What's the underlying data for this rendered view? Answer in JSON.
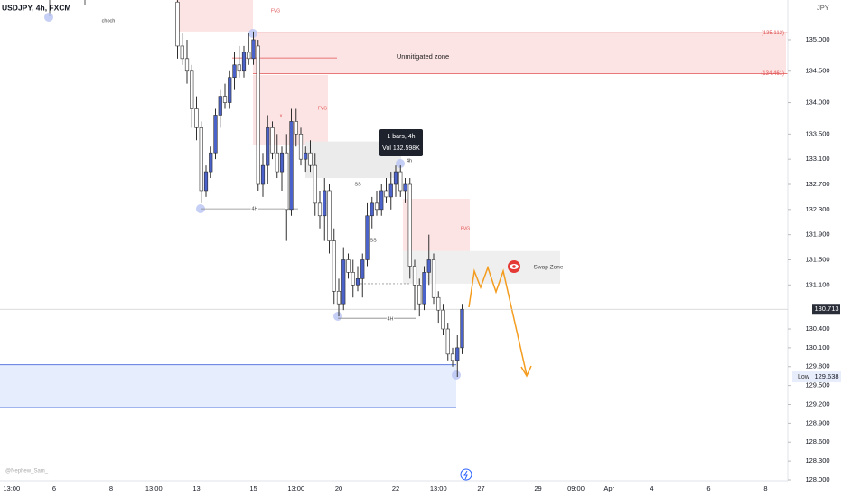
{
  "header": {
    "symbol": "USDJPY, 4h, FXCM",
    "currency": "JPY",
    "watermark": "@Nephew_Sam_"
  },
  "chart_data": {
    "type": "candlestick",
    "categories": [
      "13:00",
      null,
      null,
      null,
      null,
      null,
      null,
      null,
      null,
      "6",
      null,
      null,
      null,
      null,
      null,
      null,
      null,
      null,
      null,
      null,
      null,
      "8",
      null,
      null,
      null,
      null,
      null,
      null,
      null,
      null,
      "13:00",
      null,
      null,
      null,
      null,
      null,
      null,
      null,
      null,
      "13",
      null,
      null,
      null,
      null,
      null,
      null,
      null,
      null,
      null,
      null,
      null,
      "15",
      null,
      null,
      null,
      null,
      null,
      null,
      null,
      null,
      "13:00",
      null,
      null,
      null,
      null,
      null,
      null,
      null,
      null,
      "20",
      null,
      null,
      null,
      null,
      null,
      null,
      null,
      null,
      null,
      null,
      null,
      "22",
      null,
      null,
      null,
      null,
      null,
      null,
      null,
      null,
      "13:00",
      null,
      null,
      null,
      null,
      null,
      null,
      null,
      null,
      "27",
      null,
      null,
      null,
      null,
      null,
      null,
      null,
      null,
      null,
      null,
      null,
      "29",
      null,
      null,
      null,
      null,
      null,
      null,
      null,
      "09:00",
      null,
      null,
      null,
      null,
      null,
      null,
      "Apr",
      null,
      null,
      null,
      null,
      null,
      null,
      null,
      null,
      "4",
      null,
      null,
      null,
      null,
      null,
      null,
      null,
      null,
      null,
      null,
      null,
      "6",
      null,
      null,
      null,
      null,
      null,
      null,
      null,
      null,
      null,
      null,
      null,
      "8"
    ],
    "open": [
      null,
      null,
      null,
      null,
      null,
      null,
      null,
      null,
      null,
      null,
      null,
      null,
      null,
      null,
      null,
      null,
      null,
      null,
      null,
      null,
      null,
      null,
      null,
      null,
      null,
      null,
      null,
      null,
      null,
      null,
      null,
      null,
      null,
      null,
      null,
      135.6,
      134.9,
      134.7,
      134.5,
      133.9,
      133.6,
      132.6,
      132.9,
      133.2,
      133.8,
      134.1,
      134.0,
      134.4,
      134.6,
      134.5,
      134.8,
      134.7,
      134.9,
      132.7,
      133.0,
      133.6,
      133.2,
      132.9,
      133.2,
      132.3,
      133.7,
      133.5,
      133.1,
      133.2,
      133.0,
      132.4,
      132.2,
      132.6,
      131.8,
      131.0,
      130.8,
      131.5,
      131.3,
      131.1,
      131.2,
      131.5,
      132.2,
      132.4,
      132.3,
      132.6,
      132.5,
      132.7,
      132.9,
      132.6,
      132.7,
      131.4,
      131.1,
      130.8,
      131.3,
      131.5,
      130.9,
      130.7,
      130.4,
      130.0,
      129.9,
      130.1,
      null,
      null,
      null,
      null,
      null,
      null,
      null,
      null,
      null,
      null,
      null,
      null,
      null,
      null,
      null,
      null,
      null,
      null,
      null,
      null,
      null,
      null,
      null,
      null,
      null,
      null,
      null,
      null,
      null,
      null,
      null,
      null,
      null,
      null,
      null,
      null,
      null,
      null,
      null,
      null,
      null,
      null,
      null,
      null,
      null,
      null,
      null,
      null,
      null,
      null,
      null,
      null,
      null,
      null,
      null,
      null,
      null,
      null,
      null,
      null,
      null,
      null,
      null,
      null
    ],
    "high": [
      null,
      null,
      null,
      null,
      null,
      null,
      null,
      null,
      null,
      null,
      null,
      null,
      null,
      null,
      null,
      null,
      null,
      null,
      null,
      null,
      null,
      null,
      null,
      null,
      null,
      null,
      null,
      null,
      null,
      null,
      null,
      null,
      null,
      null,
      null,
      135.63,
      135.1,
      135.0,
      134.6,
      134.1,
      133.7,
      133.0,
      133.3,
      133.9,
      134.2,
      134.3,
      134.5,
      134.8,
      134.9,
      134.9,
      135.1,
      135.13,
      135.0,
      133.2,
      133.8,
      133.7,
      133.5,
      133.3,
      133.5,
      133.9,
      133.9,
      133.6,
      133.3,
      133.4,
      133.2,
      132.6,
      132.8,
      132.7,
      132.0,
      131.2,
      131.7,
      131.6,
      131.5,
      131.4,
      131.6,
      132.4,
      132.5,
      132.6,
      132.7,
      132.8,
      132.9,
      133.0,
      133.0,
      132.8,
      132.8,
      131.5,
      131.2,
      131.4,
      131.9,
      131.6,
      131.0,
      130.8,
      130.5,
      130.1,
      130.3,
      130.8,
      null,
      null,
      null,
      null,
      null,
      null,
      null,
      null,
      null,
      null,
      null,
      null,
      null,
      null,
      null,
      null,
      null,
      null,
      null,
      null,
      null,
      null,
      null,
      null,
      null,
      null,
      null,
      null,
      null,
      null,
      null,
      null,
      null,
      null,
      null,
      null,
      null,
      null,
      null,
      null,
      null,
      null,
      null,
      null,
      null,
      null,
      null,
      null,
      null,
      null,
      null,
      null,
      null,
      null,
      null,
      null,
      null,
      null,
      null,
      null,
      null,
      null,
      null,
      null
    ],
    "low": [
      null,
      null,
      null,
      null,
      null,
      null,
      null,
      null,
      null,
      null,
      null,
      null,
      null,
      null,
      null,
      null,
      null,
      null,
      null,
      null,
      null,
      null,
      null,
      null,
      null,
      null,
      null,
      null,
      null,
      null,
      null,
      null,
      null,
      null,
      null,
      134.7,
      134.6,
      134.3,
      133.6,
      133.4,
      132.4,
      132.5,
      132.8,
      133.1,
      133.6,
      133.9,
      133.9,
      134.2,
      134.4,
      134.4,
      134.6,
      134.6,
      132.6,
      132.5,
      132.7,
      133.1,
      132.8,
      132.6,
      131.8,
      132.2,
      133.3,
      133.0,
      132.9,
      132.9,
      132.2,
      132.0,
      131.8,
      131.6,
      130.8,
      130.6,
      130.7,
      131.2,
      130.9,
      131.0,
      130.9,
      131.4,
      132.0,
      132.2,
      132.2,
      132.4,
      132.3,
      132.5,
      132.5,
      132.4,
      131.2,
      130.7,
      130.6,
      130.7,
      131.1,
      130.8,
      130.5,
      130.3,
      129.9,
      129.8,
      129.638,
      130.0,
      null,
      null,
      null,
      null,
      null,
      null,
      null,
      null,
      null,
      null,
      null,
      null,
      null,
      null,
      null,
      null,
      null,
      null,
      null,
      null,
      null,
      null,
      null,
      null,
      null,
      null,
      null,
      null,
      null,
      null,
      null,
      null,
      null,
      null,
      null,
      null,
      null,
      null,
      null,
      null,
      null,
      null,
      null,
      null,
      null,
      null,
      null,
      null,
      null,
      null,
      null,
      null,
      null,
      null,
      null,
      null,
      null,
      null,
      null,
      null,
      null,
      null,
      null,
      null
    ],
    "close": [
      null,
      null,
      null,
      null,
      null,
      null,
      null,
      null,
      null,
      null,
      null,
      null,
      null,
      null,
      null,
      null,
      null,
      null,
      null,
      null,
      null,
      null,
      null,
      null,
      null,
      null,
      null,
      null,
      null,
      null,
      null,
      null,
      null,
      null,
      null,
      134.9,
      134.7,
      134.5,
      133.9,
      133.6,
      132.6,
      132.9,
      133.2,
      133.8,
      134.1,
      134.0,
      134.4,
      134.6,
      134.5,
      134.8,
      134.7,
      135.0,
      132.7,
      133.0,
      133.6,
      133.2,
      132.9,
      133.2,
      132.3,
      133.7,
      133.5,
      133.1,
      133.2,
      133.0,
      132.4,
      132.2,
      132.6,
      131.8,
      131.0,
      130.8,
      131.5,
      131.3,
      131.1,
      131.2,
      131.5,
      132.2,
      132.4,
      132.3,
      132.6,
      132.5,
      132.7,
      132.9,
      132.6,
      132.7,
      131.4,
      131.1,
      130.8,
      131.3,
      131.5,
      130.9,
      130.7,
      130.4,
      130.0,
      129.9,
      130.1,
      130.713,
      null,
      null,
      null,
      null,
      null,
      null,
      null,
      null,
      null,
      null,
      null,
      null,
      null,
      null,
      null,
      null,
      null,
      null,
      null,
      null,
      null,
      null,
      null,
      null,
      null,
      null,
      null,
      null,
      null,
      null,
      null,
      null,
      null,
      null,
      null,
      null,
      null,
      null,
      null,
      null,
      null,
      null,
      null,
      null,
      null,
      null,
      null,
      null,
      null,
      null,
      null,
      null,
      null,
      null,
      null,
      null,
      null,
      null,
      null,
      null,
      null,
      null,
      null,
      null
    ],
    "colors": {
      "up": "#4a62c9",
      "down": "#ffffff",
      "outline": "#2f2f2f"
    },
    "ylim": [
      128,
      135.632
    ],
    "yticks": [
      {
        "value": 135,
        "label": "135.000"
      },
      {
        "value": 134.5,
        "label": "134.500"
      },
      {
        "value": 134,
        "label": "134.000"
      },
      {
        "value": 133.5,
        "label": "133.500"
      },
      {
        "value": 133.1,
        "label": "133.100"
      },
      {
        "value": 132.7,
        "label": "132.700"
      },
      {
        "value": 132.3,
        "label": "132.300"
      },
      {
        "value": 131.9,
        "label": "131.900"
      },
      {
        "value": 131.5,
        "label": "131.500"
      },
      {
        "value": 131.1,
        "label": "131.100"
      },
      {
        "value": 130.4,
        "label": "130.400"
      },
      {
        "value": 130.1,
        "label": "130.100"
      },
      {
        "value": 129.8,
        "label": "129.800"
      },
      {
        "value": 129.5,
        "label": "129.500"
      },
      {
        "value": 129.2,
        "label": "129.200"
      },
      {
        "value": 128.9,
        "label": "128.900"
      },
      {
        "value": 128.6,
        "label": "128.600"
      },
      {
        "value": 128.3,
        "label": "128.300"
      },
      {
        "value": 128,
        "label": "128.000"
      }
    ],
    "zones": [
      {
        "top": 135.632,
        "bottom": 135.13,
        "label": "FVG",
        "color": "#fde4e4"
      },
      {
        "top": 135.112,
        "bottom": 134.461,
        "label": "Unmitigated zone",
        "top_label": "(135.112)",
        "bottom_label": "(134.461)",
        "color": "#fde4e4"
      },
      {
        "top": 134.44,
        "bottom": 133.33,
        "label": "FVG",
        "color": "#fde4e4"
      },
      {
        "top": 133.38,
        "bottom": 132.8,
        "color": "#ebebeb"
      },
      {
        "top": 132.47,
        "bottom": 131.61,
        "label": "FVG",
        "color": "#fde4e4"
      },
      {
        "top": 131.64,
        "bottom": 131.12,
        "label": "Swap Zone",
        "color": "#efefef"
      },
      {
        "top": 129.83,
        "bottom": 129.15,
        "color": "#e6edfd"
      }
    ],
    "lines": [
      {
        "value": 134.71,
        "color": "#e05050"
      },
      {
        "value": 132.31,
        "label": "4H",
        "color": "#888888"
      },
      {
        "value": 130.57,
        "label": "4H",
        "color": "#888888"
      },
      {
        "value": 132.72,
        "label": "SS",
        "color": "#999999"
      },
      {
        "value": 131.12,
        "label": "SS",
        "color": "#999999"
      }
    ],
    "annotations": [
      "choch",
      "4h",
      "x"
    ],
    "current_price": {
      "value": 130.713,
      "label": "130.713"
    },
    "low_marker": {
      "name": "Low",
      "value": 129.638,
      "label": "129.638"
    },
    "tooltip": {
      "title": "1 bars, 4h",
      "volume": "Vol 132.598K"
    }
  }
}
